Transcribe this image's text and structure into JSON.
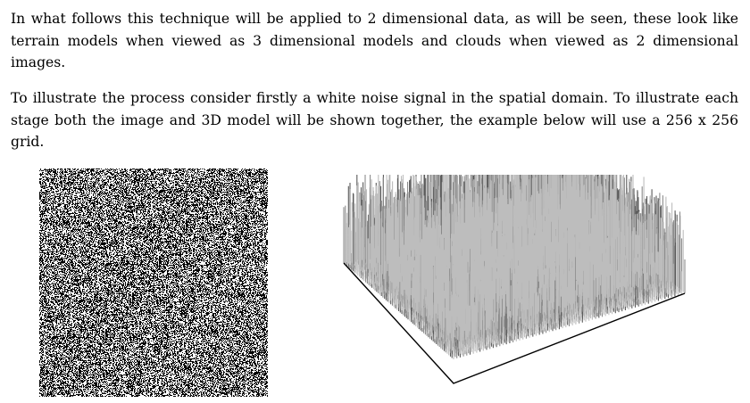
{
  "article": {
    "paragraphs": [
      "In what follows this technique will be applied to 2 dimensional data, as will be seen, these look like terrain models when viewed as 3 dimensional models and clouds when viewed as 2 dimensional images.",
      "To illustrate the process consider firstly a white noise signal in the spatial domain. To illustrate each stage both the image and 3D model will be shown together, the example below will use a 256 x 256 grid."
    ]
  },
  "figures": {
    "noise_image": {
      "grid_size": 256,
      "colors": [
        "#000000",
        "#ffffff"
      ]
    },
    "terrain_model": {
      "grid_size": 256,
      "surface_color": "#8c8c8c",
      "outline_color": "#000000"
    }
  }
}
